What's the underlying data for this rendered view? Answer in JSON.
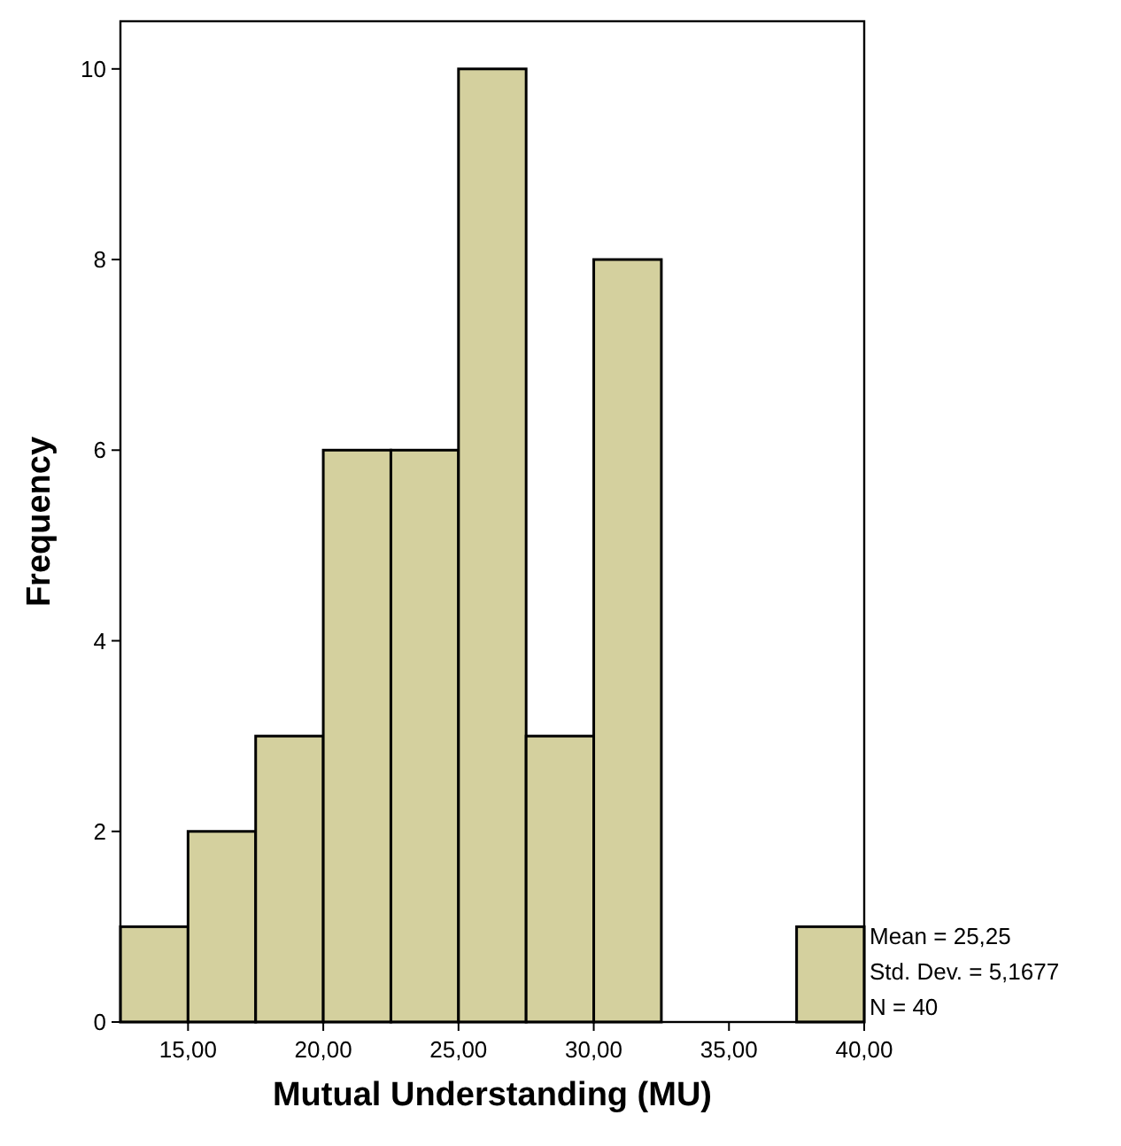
{
  "chart_data": {
    "type": "histogram",
    "xlabel": "Mutual Understanding (MU)",
    "ylabel": "Frequency",
    "bins": [
      12.5,
      15,
      17.5,
      20,
      22.5,
      25,
      27.5,
      30,
      32.5,
      35,
      37.5,
      40
    ],
    "values": [
      1,
      2,
      3,
      6,
      6,
      10,
      3,
      8,
      0,
      0,
      1
    ],
    "color": "#d4d09e",
    "xlim": [
      12.5,
      40
    ],
    "xticks": [
      {
        "value": 15,
        "label": "15,00"
      },
      {
        "value": 20,
        "label": "20,00"
      },
      {
        "value": 25,
        "label": "25,00"
      },
      {
        "value": 30,
        "label": "30,00"
      },
      {
        "value": 35,
        "label": "35,00"
      },
      {
        "value": 40,
        "label": "40,00"
      }
    ],
    "ylim": [
      0,
      10.5
    ],
    "yticks": [
      0,
      2,
      4,
      6,
      8,
      10
    ],
    "grid": false,
    "annotations": [
      "Mean = 25,25",
      "Std. Dev. = 5,1677",
      "N = 40"
    ]
  }
}
